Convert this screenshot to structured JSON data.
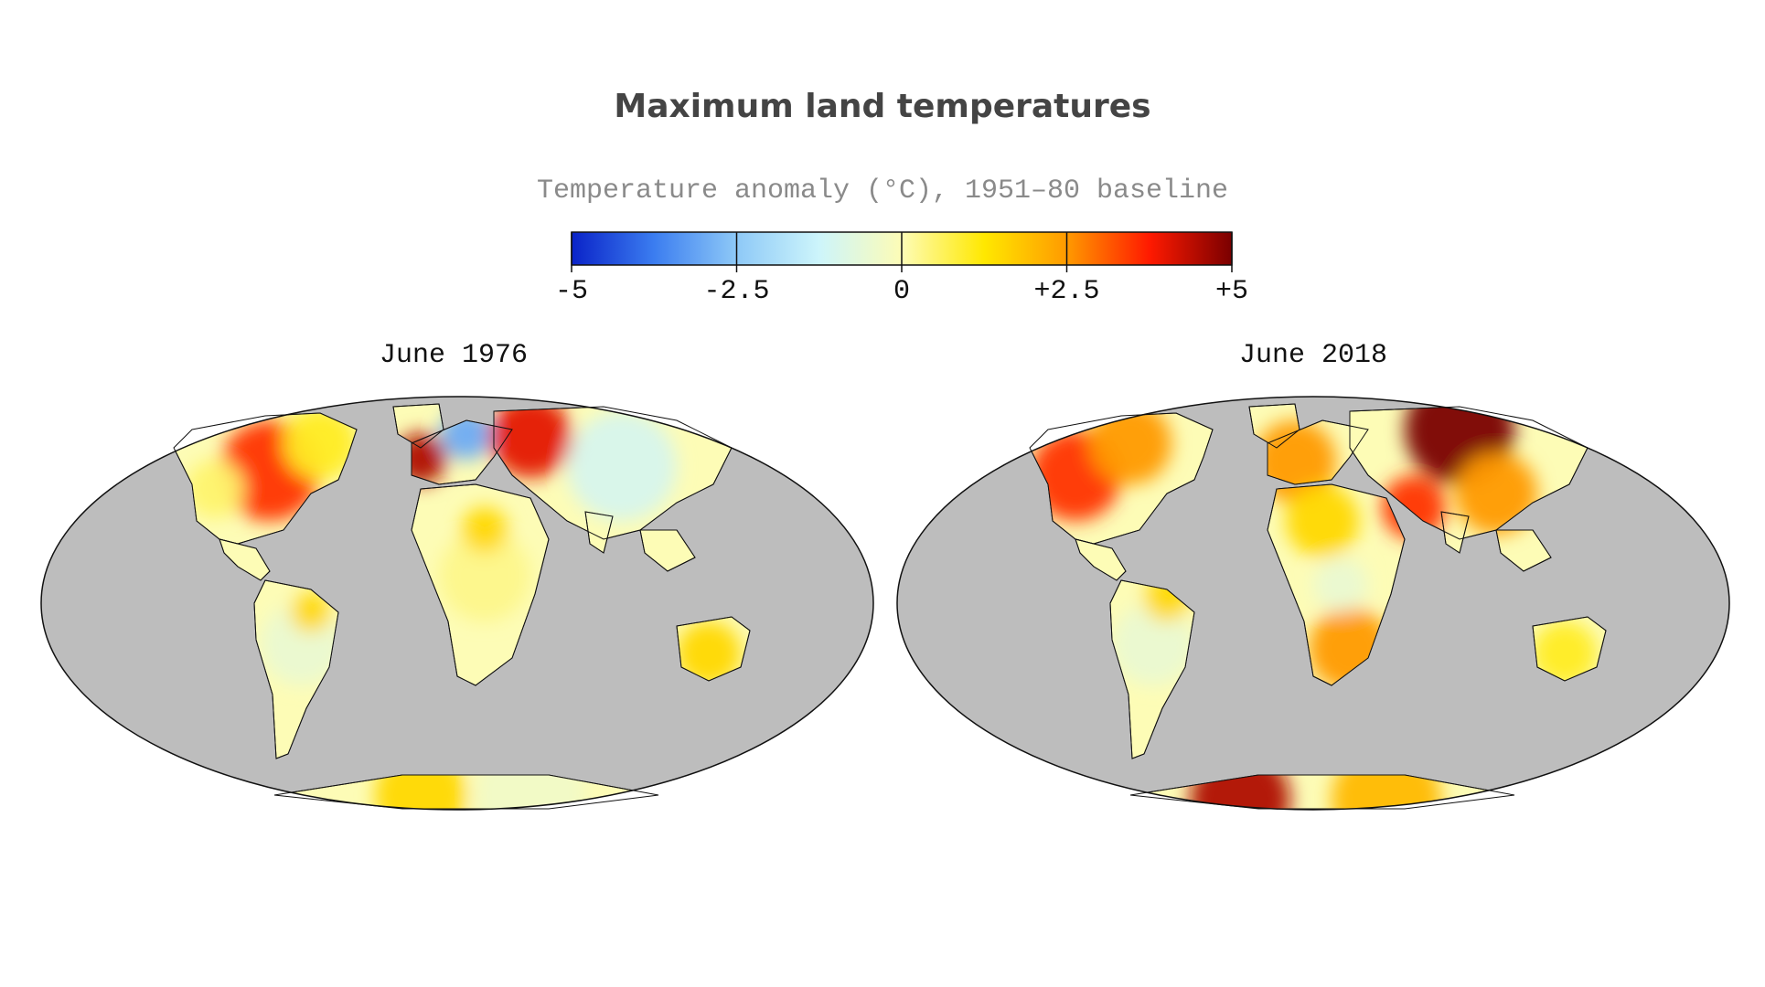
{
  "title": "Maximum land temperatures",
  "colorbar": {
    "label": "Temperature anomaly (°C), 1951–80 baseline",
    "ticks": [
      {
        "value": -5,
        "label": "-5"
      },
      {
        "value": -2.5,
        "label": "-2.5"
      },
      {
        "value": 0,
        "label": "0"
      },
      {
        "value": 2.5,
        "label": "+2.5"
      },
      {
        "value": 5,
        "label": "+5"
      }
    ],
    "range": [
      -5,
      5
    ],
    "colors": [
      "#0a23c8",
      "#3b7df0",
      "#8ec9f7",
      "#cdf5fb",
      "#fdfcb6",
      "#ffe800",
      "#ff9a00",
      "#ff1a00",
      "#7a0000"
    ],
    "no_data_color": "#bdbdbd"
  },
  "maps": [
    {
      "title": "June 1976",
      "projection": "Mollweide",
      "regional_anomalies_c": {
        "western_europe": 4.5,
        "northern_europe": -3.0,
        "western_russia": 4.0,
        "eastern_north_america": 3.5,
        "western_north_america": 0.5,
        "central_asia": -1.0,
        "south_america": -0.5,
        "africa": 0.3,
        "australia": 1.5,
        "antarctica": 0.0
      }
    },
    {
      "title": "June 2018",
      "projection": "Mollweide",
      "regional_anomalies_c": {
        "northern_siberia": 5.0,
        "western_north_america": 3.5,
        "northern_canada": 2.5,
        "europe": 2.5,
        "middle_east": 3.5,
        "north_africa": 1.5,
        "southern_africa": 2.5,
        "australia": 1.0,
        "south_america": -0.5,
        "antarctica": 4.5
      }
    }
  ]
}
